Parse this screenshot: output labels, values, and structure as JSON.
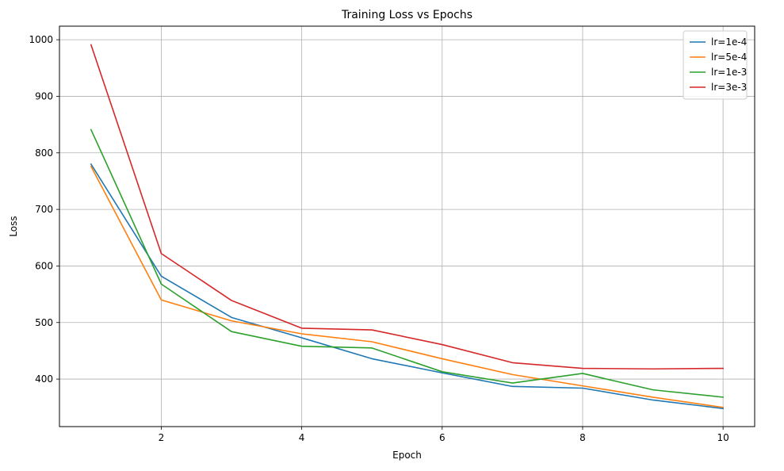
{
  "chart_data": {
    "type": "line",
    "title": "Training Loss vs Epochs",
    "xlabel": "Epoch",
    "ylabel": "Loss",
    "x": [
      1,
      2,
      3,
      4,
      5,
      6,
      7,
      8,
      9,
      10
    ],
    "xlim": [
      0.55,
      10.45
    ],
    "ylim": [
      316,
      1024
    ],
    "xticks": [
      2,
      4,
      6,
      8,
      10
    ],
    "yticks": [
      400,
      500,
      600,
      700,
      800,
      900,
      1000
    ],
    "grid": true,
    "legend_position": "top-right",
    "series": [
      {
        "name": "lr=1e-4",
        "color": "#1f77b4",
        "values": [
          780,
          582,
          509,
          473,
          436,
          411,
          387,
          384,
          363,
          348
        ]
      },
      {
        "name": "lr=5e-4",
        "color": "#ff7f0e",
        "values": [
          776,
          540,
          503,
          480,
          466,
          436,
          408,
          388,
          368,
          350
        ]
      },
      {
        "name": "lr=1e-3",
        "color": "#2ca02c",
        "values": [
          841,
          568,
          484,
          458,
          455,
          413,
          393,
          410,
          381,
          368
        ]
      },
      {
        "name": "lr=3e-3",
        "color": "#d62728",
        "values": [
          991,
          622,
          539,
          490,
          487,
          461,
          429,
          419,
          418,
          419
        ]
      }
    ]
  }
}
